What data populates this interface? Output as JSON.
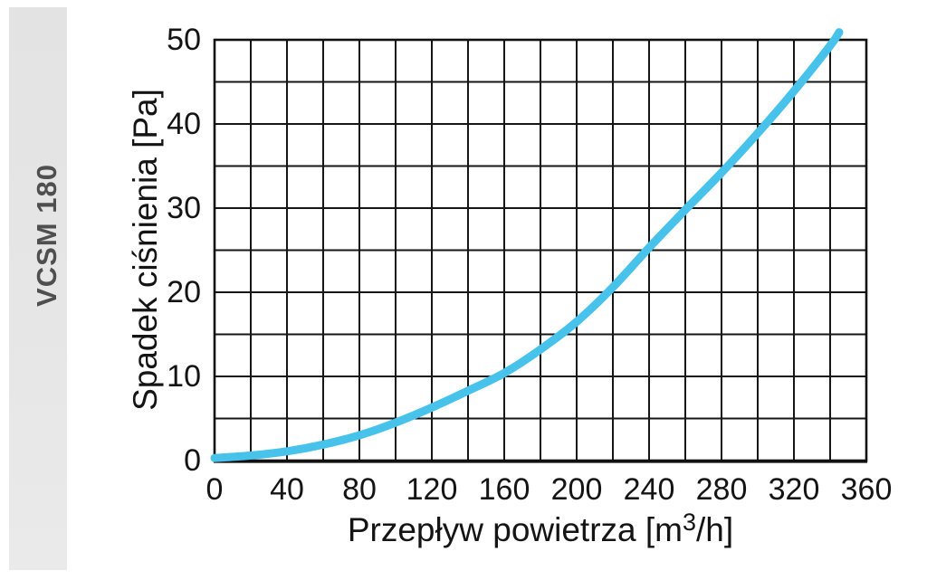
{
  "sidebar": {
    "label": "VCSM 180",
    "bg_color": "#e6e6e6",
    "text_color": "#4f4f4f"
  },
  "chart_data": {
    "type": "line",
    "title": "",
    "xlabel": "Przepływ powietrza [m³/h]",
    "xlabel_parts": {
      "prefix": "Przepływ powietrza [m",
      "sup": "3",
      "suffix": "/h]"
    },
    "ylabel": "Spadek ciśnienia [Pa]",
    "xlim": [
      0,
      360
    ],
    "ylim": [
      0,
      50
    ],
    "x_ticks": [
      0,
      40,
      80,
      120,
      160,
      200,
      240,
      280,
      320,
      360
    ],
    "y_ticks": [
      0,
      10,
      20,
      30,
      40,
      50
    ],
    "x_grid_step": 20,
    "y_grid_step": 5,
    "grid": true,
    "legend_position": "none",
    "grid_color": "#161616",
    "axis_color": "#111111",
    "series": [
      {
        "name": "VCSM 180",
        "color": "#47c2eb",
        "stroke_width": 9,
        "points": [
          [
            0,
            0.3
          ],
          [
            20,
            0.6
          ],
          [
            40,
            1.1
          ],
          [
            60,
            1.9
          ],
          [
            80,
            3.0
          ],
          [
            100,
            4.5
          ],
          [
            120,
            6.3
          ],
          [
            140,
            8.3
          ],
          [
            160,
            10.4
          ],
          [
            180,
            13.2
          ],
          [
            200,
            16.5
          ],
          [
            220,
            20.6
          ],
          [
            240,
            25.3
          ],
          [
            260,
            29.8
          ],
          [
            280,
            34.2
          ],
          [
            300,
            38.9
          ],
          [
            320,
            43.9
          ],
          [
            340,
            49.3
          ],
          [
            345,
            50.9
          ]
        ]
      }
    ]
  }
}
